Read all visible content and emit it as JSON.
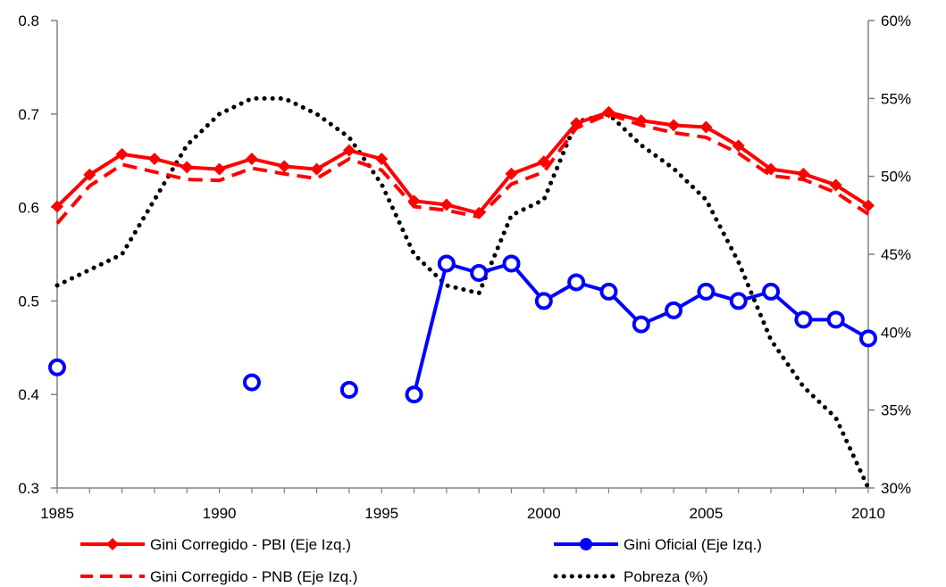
{
  "chart_data": {
    "type": "line",
    "x_ticks": [
      "1985",
      "1990",
      "1995",
      "2000",
      "2005",
      "2010"
    ],
    "xlim": [
      1985,
      2010
    ],
    "y_left": {
      "lim": [
        0.3,
        0.8
      ],
      "ticks": [
        "0.3",
        "0.4",
        "0.5",
        "0.6",
        "0.7",
        "0.8"
      ]
    },
    "y_right": {
      "lim": [
        30,
        60
      ],
      "ticks": [
        "30%",
        "35%",
        "40%",
        "45%",
        "50%",
        "55%",
        "60%"
      ]
    },
    "grid": false,
    "legend_position": "bottom",
    "series": [
      {
        "name": "Gini Corregido - PBI (Eje Izq.)",
        "axis": "left",
        "style": "solid-diamond",
        "color": "#ff0000",
        "x": [
          1985,
          1986,
          1987,
          1988,
          1989,
          1990,
          1991,
          1992,
          1993,
          1994,
          1995,
          1996,
          1997,
          1998,
          1999,
          2000,
          2001,
          2002,
          2003,
          2004,
          2005,
          2006,
          2007,
          2008,
          2009,
          2010
        ],
        "values": [
          0.601,
          0.635,
          0.657,
          0.652,
          0.643,
          0.641,
          0.652,
          0.644,
          0.641,
          0.661,
          0.652,
          0.607,
          0.603,
          0.594,
          0.636,
          0.649,
          0.69,
          0.702,
          0.693,
          0.688,
          0.686,
          0.666,
          0.641,
          0.636,
          0.624,
          0.602
        ]
      },
      {
        "name": "Gini Corregido - PNB (Eje Izq.)",
        "axis": "left",
        "style": "dashed",
        "color": "#ff0000",
        "x": [
          1985,
          1986,
          1987,
          1988,
          1989,
          1990,
          1991,
          1992,
          1993,
          1994,
          1995,
          1996,
          1997,
          1998,
          1999,
          2000,
          2001,
          2002,
          2003,
          2004,
          2005,
          2006,
          2007,
          2008,
          2009,
          2010
        ],
        "values": [
          0.583,
          0.623,
          0.646,
          0.638,
          0.63,
          0.629,
          0.642,
          0.636,
          0.631,
          0.652,
          0.64,
          0.601,
          0.597,
          0.59,
          0.625,
          0.638,
          0.685,
          0.7,
          0.688,
          0.68,
          0.675,
          0.658,
          0.634,
          0.63,
          0.616,
          0.593
        ]
      },
      {
        "name": "Gini Oficial (Eje Izq.)",
        "axis": "left",
        "style": "solid-circle",
        "color": "#0000ff",
        "x": [
          1985,
          1991,
          1994,
          1996,
          1997,
          1998,
          1999,
          2000,
          2001,
          2002,
          2003,
          2004,
          2005,
          2006,
          2007,
          2008,
          2009,
          2010
        ],
        "values": [
          0.429,
          0.413,
          0.405,
          0.4,
          0.54,
          0.53,
          0.54,
          0.5,
          0.52,
          0.51,
          0.475,
          0.49,
          0.51,
          0.5,
          0.51,
          0.48,
          0.48,
          0.46
        ]
      },
      {
        "name": "Pobreza (%)",
        "axis": "right",
        "style": "dotted",
        "color": "#000000",
        "x": [
          1985,
          1986,
          1987,
          1988,
          1989,
          1990,
          1991,
          1992,
          1993,
          1994,
          1995,
          1996,
          1997,
          1998,
          1999,
          2000,
          2001,
          2002,
          2003,
          2004,
          2005,
          2006,
          2007,
          2008,
          2009,
          2010
        ],
        "values": [
          43.0,
          44.0,
          45.0,
          48.5,
          52.0,
          54.0,
          55.0,
          55.0,
          54.0,
          52.5,
          49.5,
          45.0,
          43.0,
          42.5,
          47.5,
          48.5,
          53.5,
          54.0,
          52.0,
          50.5,
          48.5,
          44.5,
          39.5,
          36.5,
          34.5,
          30.0
        ]
      }
    ]
  },
  "legend": [
    {
      "label": "Gini Corregido - PBI (Eje Izq.)",
      "style": "solid-diamond",
      "color": "#ff0000"
    },
    {
      "label": "Gini Oficial (Eje Izq.)",
      "style": "solid-circle",
      "color": "#0000ff"
    },
    {
      "label": "Gini Corregido - PNB (Eje Izq.)",
      "style": "dashed",
      "color": "#ff0000"
    },
    {
      "label": "Pobreza (%)",
      "style": "dotted",
      "color": "#000000"
    }
  ]
}
